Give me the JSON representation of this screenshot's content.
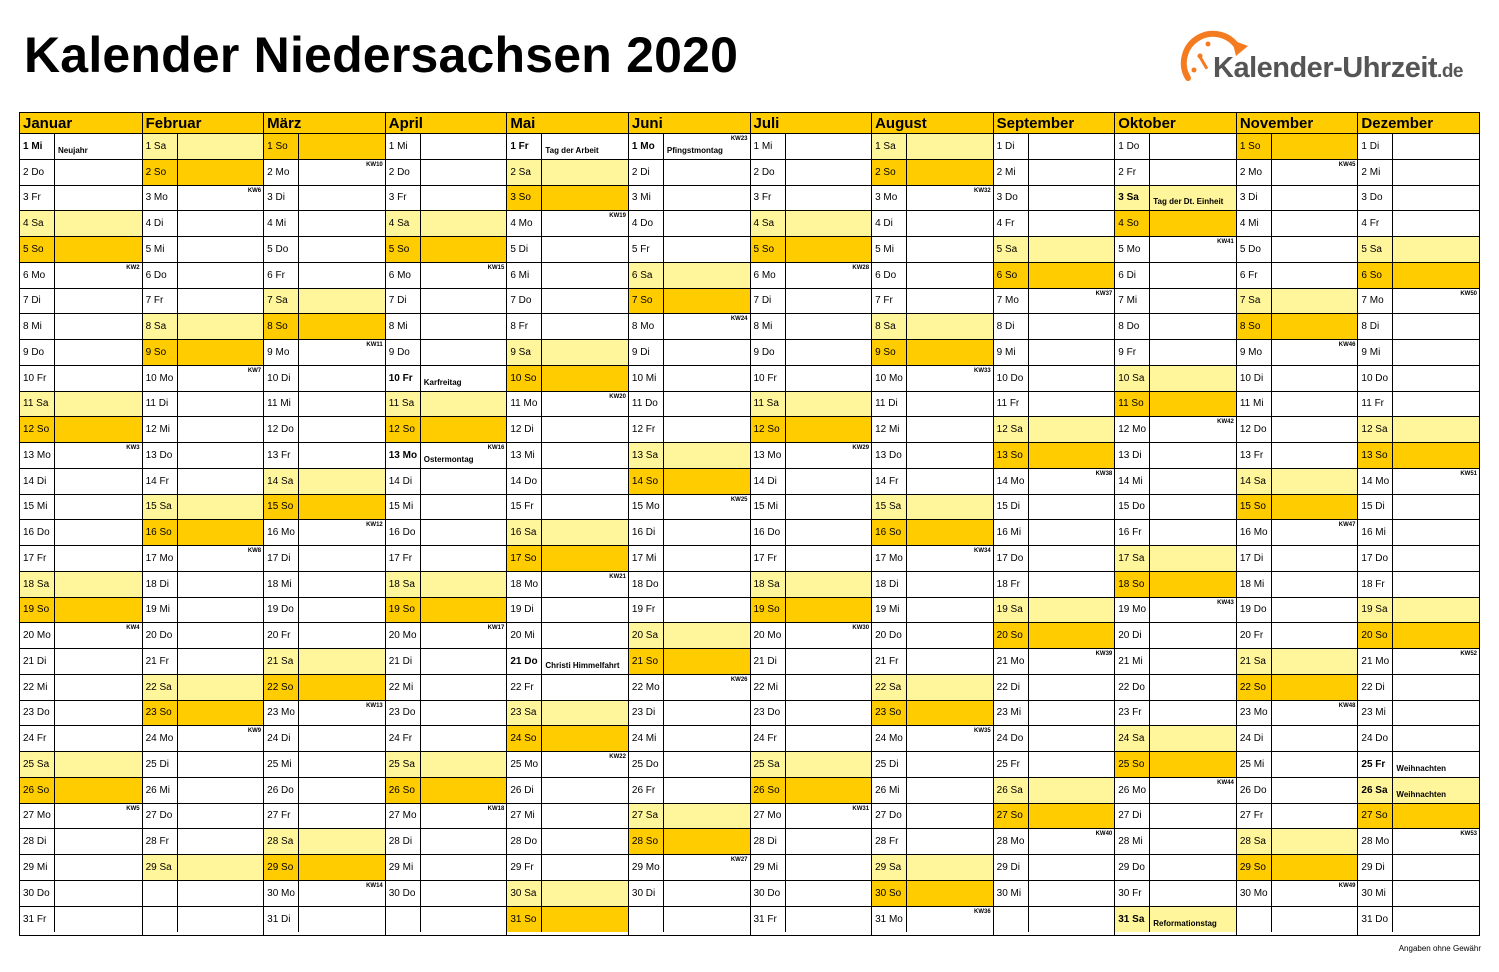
{
  "title": "Kalender Niedersachsen 2020",
  "logo": {
    "name": "Kalender-Uhrzeit",
    "tld": ".de",
    "icon": "clock-arc-logo-icon"
  },
  "footer": "Angaben ohne Gewähr",
  "colors": {
    "saturday": "#FFF59A",
    "sunday": "#FFCC00",
    "header": "#FFCC00",
    "logo_accent": "#F47B20",
    "logo_text": "#555555"
  },
  "year": 2020,
  "weekdays": [
    "So",
    "Mo",
    "Di",
    "Mi",
    "Do",
    "Fr",
    "Sa"
  ],
  "months": [
    "Januar",
    "Februar",
    "März",
    "April",
    "Mai",
    "Juni",
    "Juli",
    "August",
    "September",
    "Oktober",
    "November",
    "Dezember"
  ],
  "month_lengths": [
    31,
    29,
    31,
    30,
    31,
    30,
    31,
    31,
    30,
    31,
    30,
    31
  ],
  "first_weekday": [
    3,
    6,
    0,
    3,
    5,
    1,
    3,
    6,
    2,
    4,
    0,
    2
  ],
  "holidays": {
    "1-1": "Neujahr",
    "4-10": "Karfreitag",
    "4-13": "Ostermontag",
    "5-1": "Tag der Arbeit",
    "5-21": "Christi Himmelfahrt",
    "6-1": "Pfingstmontag",
    "10-3": "Tag der Dt. Einheit",
    "10-31": "Reformationstag",
    "12-25": "Weihnachten",
    "12-26": "Weihnachten"
  }
}
